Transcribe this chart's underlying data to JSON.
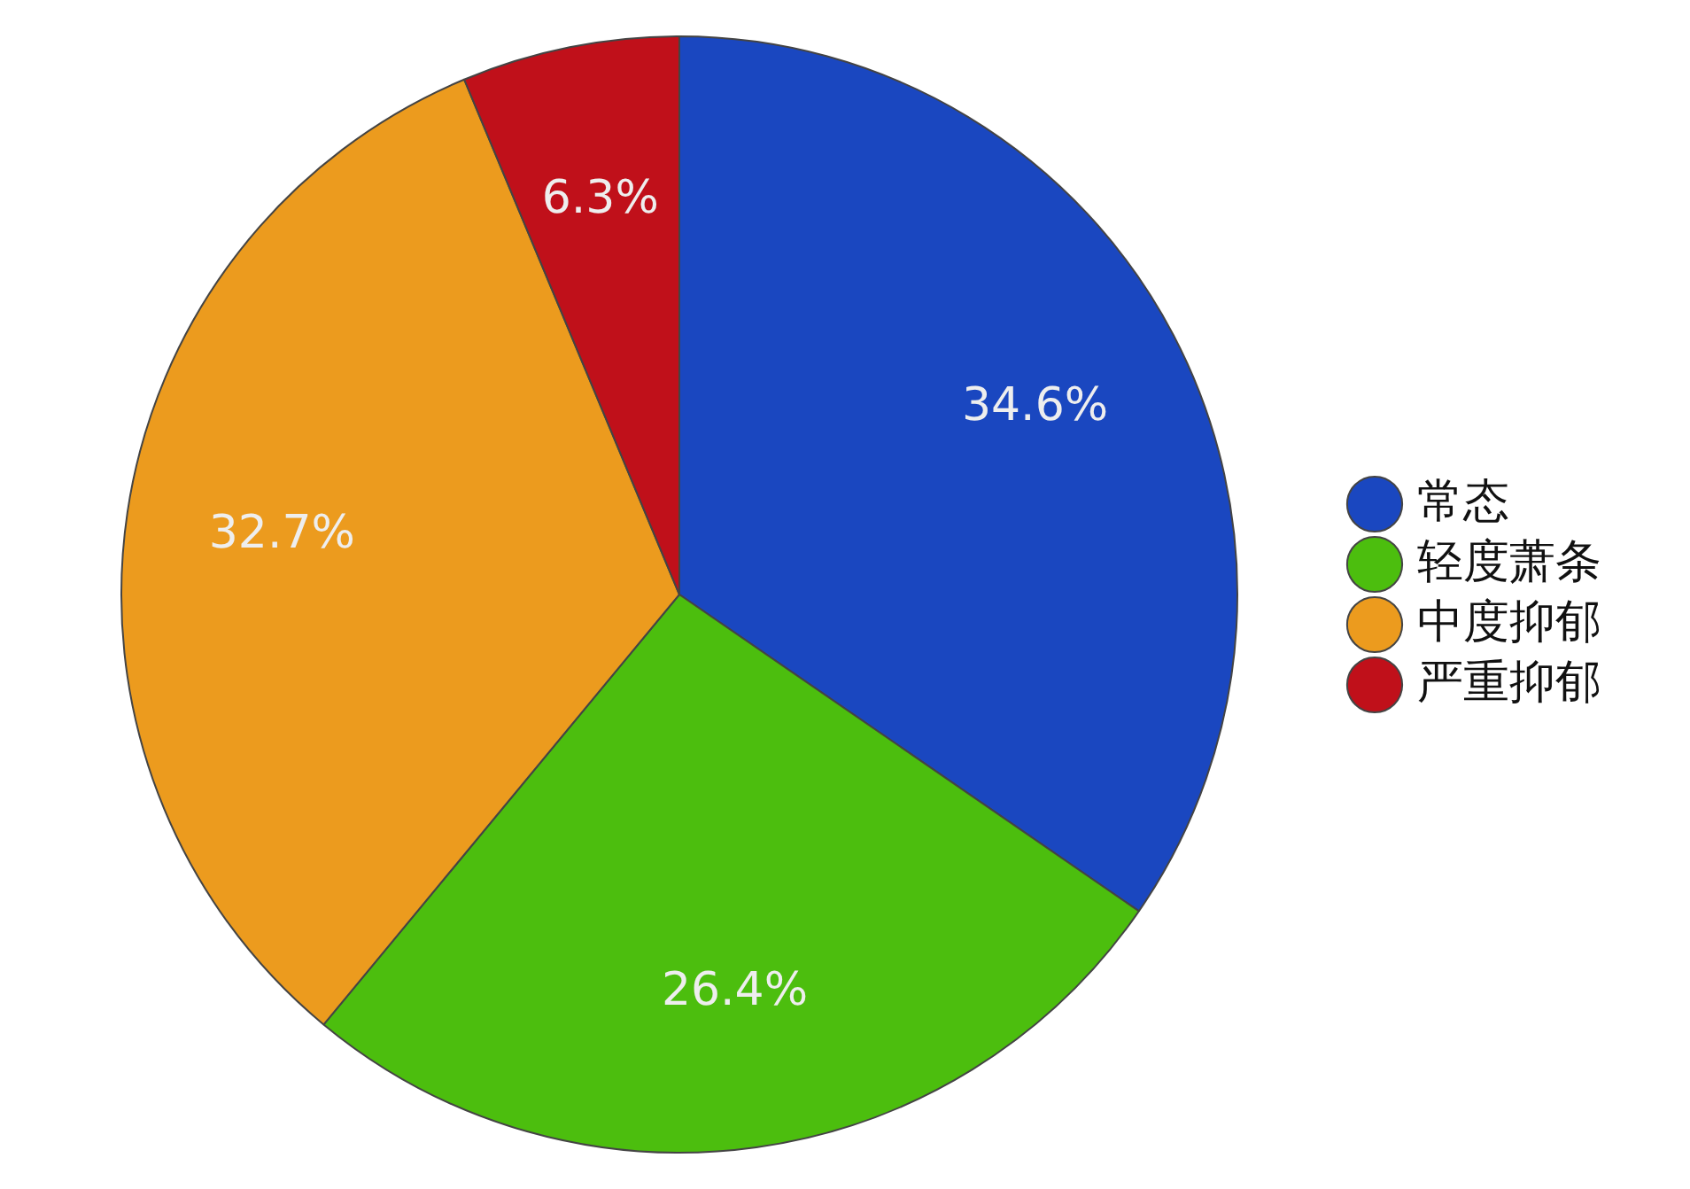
{
  "chart_data": {
    "type": "pie",
    "categories": [
      "常态",
      "轻度萧条",
      "中度抑郁",
      "严重抑郁"
    ],
    "values": [
      34.6,
      26.4,
      32.7,
      6.3
    ],
    "colors": [
      "#1a47c0",
      "#4cbe0e",
      "#ec9b1e",
      "#c0101a"
    ],
    "value_labels": [
      "34.6%",
      "26.4%",
      "32.7%",
      "6.3%"
    ],
    "legend": "right"
  }
}
